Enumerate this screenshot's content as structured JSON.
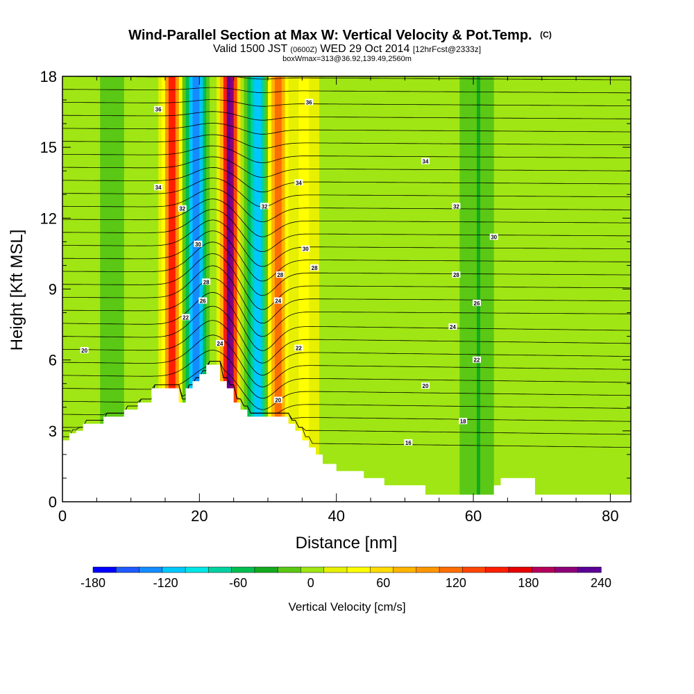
{
  "chart_data": {
    "type": "heatmap",
    "title": "Wind-Parallel Section at Max W: Vertical Velocity & Pot.Temp.",
    "title_suffix": "(C)",
    "subtitle_main_a": "Valid 1500 JST",
    "subtitle_small_a": "(0600Z)",
    "subtitle_main_b": "WED 29 Oct 2014",
    "subtitle_small_b": "[12hrFcst@2333z]",
    "subtitle_line2": "boxWmax=313@36.92,139.49,2560m",
    "xlabel": "Distance [nm]",
    "ylabel": "Height [Kft MSL]",
    "xlim": [
      0,
      83
    ],
    "ylim": [
      0,
      18
    ],
    "x_ticks": [
      0,
      20,
      40,
      60,
      80
    ],
    "y_ticks": [
      0,
      3,
      6,
      9,
      12,
      15,
      18
    ],
    "colorbar": {
      "label": "Vertical Velocity [cm/s]",
      "levels": [
        -180,
        -160,
        -140,
        -120,
        -100,
        -80,
        -60,
        -40,
        -20,
        0,
        20,
        40,
        60,
        80,
        100,
        120,
        140,
        160,
        180,
        200,
        220,
        240
      ],
      "tick_labels": [
        -180,
        -120,
        -60,
        0,
        60,
        120,
        180,
        240
      ],
      "colors": [
        "#0000ff",
        "#1e5aff",
        "#148cff",
        "#00c8ff",
        "#00e6e6",
        "#00d2a0",
        "#00be50",
        "#14aa1e",
        "#5ac814",
        "#a0e614",
        "#e6f000",
        "#ffff00",
        "#ffdc00",
        "#ffb400",
        "#ff9600",
        "#ff6e00",
        "#ff4600",
        "#ff1e00",
        "#e60000",
        "#b4005a",
        "#8c0078",
        "#5a0096"
      ]
    },
    "vertical_velocity_features": [
      {
        "x": 16,
        "half_width": 1.1,
        "value": 160
      },
      {
        "x": 19.5,
        "half_width": 1.4,
        "value": -140
      },
      {
        "x": 24.5,
        "half_width": 1.1,
        "value": 240
      },
      {
        "x": 28.5,
        "half_width": 1.3,
        "value": -120
      },
      {
        "x": 31.5,
        "half_width": 1.2,
        "value": 130
      },
      {
        "x": 35,
        "half_width": 1.5,
        "value": 40
      },
      {
        "x": 8,
        "half_width": 1.5,
        "value": -30
      },
      {
        "x": 60,
        "half_width": 3.0,
        "value": -25
      }
    ],
    "terrain": {
      "x": [
        0,
        1,
        1,
        2,
        2,
        3,
        3,
        6,
        6,
        9,
        9,
        11,
        11,
        13,
        13,
        17,
        17,
        18,
        18,
        19,
        19,
        20,
        20,
        21,
        21,
        23,
        23,
        24,
        24,
        25,
        25,
        26,
        26,
        27,
        27,
        33,
        33,
        34,
        34,
        35,
        35,
        36,
        36,
        37,
        37,
        38,
        38,
        40,
        40,
        44,
        44,
        47,
        47,
        53,
        53,
        63,
        63,
        64,
        64,
        66,
        66,
        69,
        69,
        71,
        71,
        83
      ],
      "y": [
        2.6,
        2.6,
        2.9,
        2.9,
        3.0,
        3.0,
        3.3,
        3.3,
        3.6,
        3.6,
        3.9,
        3.9,
        4.2,
        4.2,
        4.8,
        4.8,
        4.2,
        4.2,
        4.8,
        4.8,
        5.1,
        5.1,
        5.4,
        5.4,
        5.8,
        5.8,
        5.1,
        5.1,
        4.8,
        4.8,
        4.2,
        4.2,
        3.9,
        3.9,
        3.6,
        3.6,
        3.3,
        3.3,
        3.0,
        3.0,
        2.6,
        2.6,
        2.3,
        2.3,
        2.0,
        2.0,
        1.6,
        1.6,
        1.3,
        1.3,
        1.0,
        1.0,
        0.7,
        0.7,
        0.3,
        0.3,
        0.7,
        0.7,
        1.0,
        1.0,
        1.0,
        1.0,
        0.3,
        0.3,
        0.3,
        0.3
      ]
    },
    "potential_temperature_labels": [
      {
        "text": "36",
        "x": 14,
        "y": 16.6
      },
      {
        "text": "36",
        "x": 36,
        "y": 16.9
      },
      {
        "text": "34",
        "x": 14,
        "y": 13.3
      },
      {
        "text": "34",
        "x": 34.5,
        "y": 13.5
      },
      {
        "text": "34",
        "x": 53,
        "y": 14.4
      },
      {
        "text": "32",
        "x": 17.5,
        "y": 12.4
      },
      {
        "text": "32",
        "x": 29.5,
        "y": 12.5
      },
      {
        "text": "32",
        "x": 57.5,
        "y": 12.5
      },
      {
        "text": "30",
        "x": 19.8,
        "y": 10.9
      },
      {
        "text": "30",
        "x": 35.5,
        "y": 10.7
      },
      {
        "text": "30",
        "x": 63,
        "y": 11.2
      },
      {
        "text": "28",
        "x": 21,
        "y": 9.3
      },
      {
        "text": "28",
        "x": 31.8,
        "y": 9.6
      },
      {
        "text": "28",
        "x": 36.8,
        "y": 9.9
      },
      {
        "text": "28",
        "x": 57.5,
        "y": 9.6
      },
      {
        "text": "26",
        "x": 20.5,
        "y": 8.5
      },
      {
        "text": "26",
        "x": 60.5,
        "y": 8.4
      },
      {
        "text": "24",
        "x": 31.5,
        "y": 8.5
      },
      {
        "text": "24",
        "x": 57,
        "y": 7.4
      },
      {
        "text": "24",
        "x": 23,
        "y": 6.7
      },
      {
        "text": "22",
        "x": 18,
        "y": 7.8
      },
      {
        "text": "22",
        "x": 34.5,
        "y": 6.5
      },
      {
        "text": "22",
        "x": 60.5,
        "y": 6.0
      },
      {
        "text": "20",
        "x": 3.2,
        "y": 6.4
      },
      {
        "text": "20",
        "x": 53,
        "y": 4.9
      },
      {
        "text": "20",
        "x": 31.5,
        "y": 4.3
      },
      {
        "text": "18",
        "x": 58.5,
        "y": 3.4
      },
      {
        "text": "16",
        "x": 50.5,
        "y": 2.5
      }
    ]
  }
}
